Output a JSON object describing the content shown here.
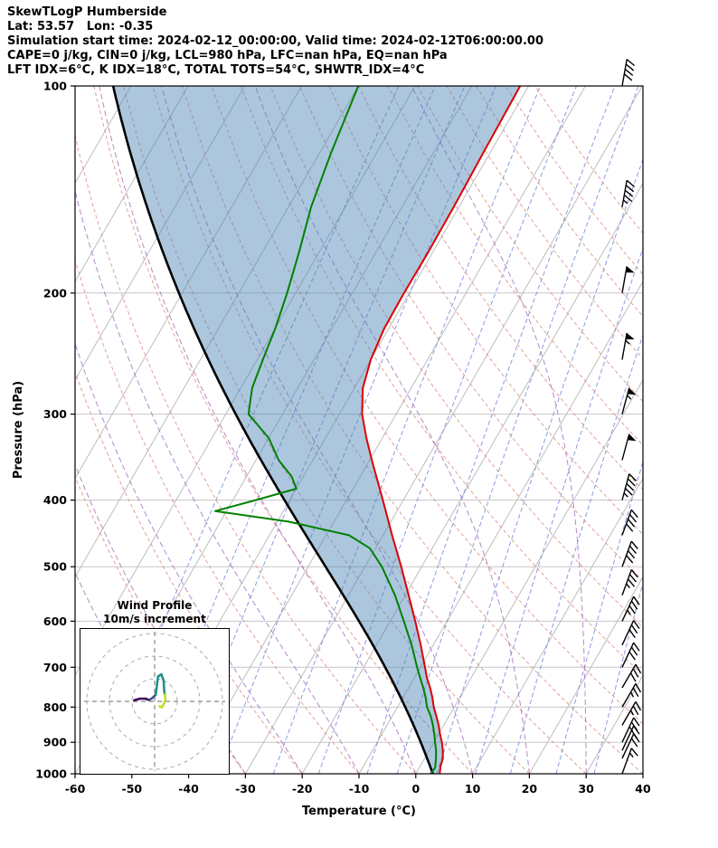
{
  "header": {
    "title": "SkewTLogP Humberside",
    "location": "Lat: 53.57   Lon: -0.35",
    "times": "Simulation start time: 2024-02-12_00:00:00, Valid time: 2024-02-12T06:00:00.00",
    "indices1": "CAPE=0 j/kg, CIN=0 j/kg, LCL=980 hPa, LFC=nan hPa, EQ=nan hPa",
    "indices2": "LFT IDX=6°C, K IDX=18°C, TOTAL TOTS=54°C, SHWTR_IDX=4°C"
  },
  "axes": {
    "xlabel": "Temperature (°C)",
    "ylabel": "Pressure (hPa)",
    "x_range": [
      -60,
      40
    ],
    "p_range": [
      100,
      1000
    ],
    "skew_deg": 30,
    "x_ticks": [
      -60,
      -50,
      -40,
      -30,
      -20,
      -10,
      0,
      10,
      20,
      30,
      40
    ],
    "y_ticks": [
      100,
      200,
      300,
      400,
      500,
      600,
      700,
      800,
      900,
      1000
    ]
  },
  "chart_data": {
    "type": "skewt-logp",
    "station": "Humberside",
    "lat": 53.57,
    "lon": -0.35,
    "cape_j_kg": 0,
    "cin_j_kg": 0,
    "lcl_hpa": 980,
    "lfc_hpa": "nan",
    "eq_hpa": "nan",
    "lifted_index_c": 6,
    "k_index_c": 18,
    "total_totals_c": 54,
    "showalter_index_c": 4,
    "temperature_profile": {
      "pressure_hpa": [
        1000,
        975,
        950,
        925,
        900,
        875,
        850,
        825,
        800,
        775,
        750,
        725,
        700,
        650,
        600,
        550,
        500,
        450,
        400,
        350,
        325,
        300,
        275,
        250,
        225,
        200,
        175,
        150,
        125,
        100
      ],
      "temp_c": [
        4.2,
        3.6,
        3.2,
        2.4,
        1.4,
        0.2,
        -0.9,
        -2.2,
        -3.6,
        -4.8,
        -6.2,
        -7.8,
        -9.2,
        -12.2,
        -15.6,
        -19.4,
        -23.6,
        -28.4,
        -33.6,
        -39.6,
        -42.8,
        -46.0,
        -48.5,
        -50.0,
        -50.8,
        -50.9,
        -50.8,
        -50.9,
        -51.2,
        -51.5
      ]
    },
    "dewpoint_profile": {
      "pressure_hpa": [
        1000,
        980,
        950,
        925,
        900,
        875,
        850,
        825,
        800,
        775,
        750,
        725,
        700,
        650,
        600,
        550,
        500,
        470,
        450,
        430,
        415,
        400,
        385,
        370,
        350,
        325,
        300,
        275,
        250,
        225,
        200,
        175,
        150,
        125,
        100
      ],
      "dewpoint_c": [
        2.6,
        2.8,
        2.0,
        1.2,
        0.2,
        -0.8,
        -1.9,
        -3.2,
        -4.8,
        -6.0,
        -7.4,
        -9.0,
        -10.6,
        -13.8,
        -17.6,
        -21.8,
        -27.0,
        -31.0,
        -36.0,
        -48.0,
        -62.0,
        -56.0,
        -50.0,
        -52.0,
        -56.0,
        -60.0,
        -66.0,
        -68.0,
        -69.0,
        -70.0,
        -71.5,
        -73.5,
        -76.0,
        -78.0,
        -80.0
      ]
    },
    "parcel": {
      "type": "moist-adiabat",
      "start_temp_c": 3.0,
      "start_pressure_hpa": 1000
    },
    "winds": [
      {
        "pressure_hpa": 1000,
        "speed_kt": 15,
        "dir_deg": 20
      },
      {
        "pressure_hpa": 950,
        "speed_kt": 20,
        "dir_deg": 25
      },
      {
        "pressure_hpa": 925,
        "speed_kt": 20,
        "dir_deg": 25
      },
      {
        "pressure_hpa": 900,
        "speed_kt": 25,
        "dir_deg": 25
      },
      {
        "pressure_hpa": 850,
        "speed_kt": 25,
        "dir_deg": 30
      },
      {
        "pressure_hpa": 800,
        "speed_kt": 25,
        "dir_deg": 30
      },
      {
        "pressure_hpa": 750,
        "speed_kt": 30,
        "dir_deg": 30
      },
      {
        "pressure_hpa": 700,
        "speed_kt": 30,
        "dir_deg": 25
      },
      {
        "pressure_hpa": 650,
        "speed_kt": 30,
        "dir_deg": 25
      },
      {
        "pressure_hpa": 600,
        "speed_kt": 35,
        "dir_deg": 25
      },
      {
        "pressure_hpa": 550,
        "speed_kt": 35,
        "dir_deg": 20
      },
      {
        "pressure_hpa": 500,
        "speed_kt": 40,
        "dir_deg": 20
      },
      {
        "pressure_hpa": 450,
        "speed_kt": 40,
        "dir_deg": 20
      },
      {
        "pressure_hpa": 400,
        "speed_kt": 45,
        "dir_deg": 15
      },
      {
        "pressure_hpa": 350,
        "speed_kt": 50,
        "dir_deg": 15
      },
      {
        "pressure_hpa": 300,
        "speed_kt": 55,
        "dir_deg": 15
      },
      {
        "pressure_hpa": 250,
        "speed_kt": 55,
        "dir_deg": 10
      },
      {
        "pressure_hpa": 200,
        "speed_kt": 50,
        "dir_deg": 10
      },
      {
        "pressure_hpa": 150,
        "speed_kt": 45,
        "dir_deg": 10
      },
      {
        "pressure_hpa": 100,
        "speed_kt": 40,
        "dir_deg": 10
      }
    ],
    "barb_x": 688,
    "background": {
      "isotherms_c": [
        -120,
        -110,
        -100,
        -90,
        -80,
        -70,
        -60,
        -50,
        -40,
        -30,
        -20,
        -10,
        0,
        10,
        20,
        30,
        40
      ],
      "dry_adiabats_c": [
        -30,
        -20,
        -10,
        0,
        10,
        20,
        30,
        40,
        50,
        60,
        70,
        80,
        90,
        100,
        110,
        120,
        130,
        140,
        150,
        160
      ],
      "moist_adiabats_c": [
        -40,
        -30,
        -20,
        -10,
        0,
        10,
        20,
        30
      ],
      "mixing_ratio_g_kg": [
        0.02,
        0.05,
        0.1,
        0.2,
        0.5,
        1,
        2,
        3,
        5,
        8,
        12,
        20,
        30
      ]
    },
    "colors": {
      "temperature": "#dd0000",
      "dewpoint": "#008000",
      "parcel": "#000000",
      "fill": "rgba(70,130,180,0.45)",
      "isotherm": "#bdbdbd",
      "dry_adiabat": "#d98880",
      "moist_adiabat": "#a569bd",
      "mixing_ratio": "#7988d9",
      "barb": "#000000"
    }
  },
  "inset": {
    "title": "Wind Profile",
    "subtitle": "10m/s increment",
    "rings_ms": [
      10,
      20,
      30
    ],
    "trace": [
      {
        "color": "#440154",
        "points_ms": [
          [
            -9,
            0.5
          ],
          [
            -6.5,
            1.2
          ],
          [
            -4,
            1.2
          ],
          [
            -2.5,
            0.6
          ]
        ]
      },
      {
        "color": "#3b528b",
        "points_ms": [
          [
            -2.5,
            0.6
          ],
          [
            -1,
            1.5
          ],
          [
            0.5,
            3
          ]
        ]
      },
      {
        "color": "#21918c",
        "points_ms": [
          [
            0.5,
            3
          ],
          [
            1,
            7
          ],
          [
            1.5,
            11
          ],
          [
            3,
            12
          ],
          [
            4,
            9
          ],
          [
            4.2,
            5
          ],
          [
            4.5,
            3
          ]
        ]
      },
      {
        "color": "#bddf26",
        "points_ms": [
          [
            4.5,
            3
          ],
          [
            4.8,
            0.5
          ],
          [
            3.2,
            -2.6
          ],
          [
            2.2,
            -2.2
          ]
        ]
      }
    ]
  }
}
